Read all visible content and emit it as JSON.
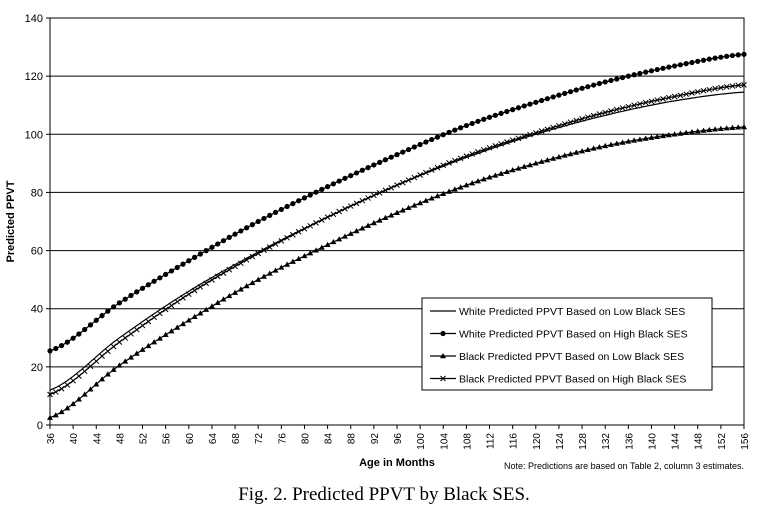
{
  "chart_data": {
    "type": "line",
    "xlabel": "Age in Months",
    "ylabel": "Predicted PPVT",
    "xlim": [
      36,
      156
    ],
    "ylim": [
      0,
      140
    ],
    "x_ticks": [
      36,
      40,
      44,
      48,
      52,
      56,
      60,
      64,
      68,
      72,
      76,
      80,
      84,
      88,
      92,
      96,
      100,
      104,
      108,
      112,
      116,
      120,
      124,
      128,
      132,
      136,
      140,
      144,
      148,
      152,
      156
    ],
    "y_ticks": [
      0,
      20,
      40,
      60,
      80,
      100,
      120,
      140
    ],
    "grid": "horizontal",
    "legend_position": "bottom-right",
    "x": [
      36,
      48,
      60,
      72,
      84,
      96,
      108,
      120,
      132,
      144,
      156
    ],
    "series": [
      {
        "name": "White Predicted PPVT Based on Low Black SES",
        "marker": "none",
        "values": [
          12,
          30,
          46,
          59.5,
          71.5,
          82.5,
          92,
          100,
          106.5,
          111.5,
          114.5
        ]
      },
      {
        "name": "White Predicted PPVT Based on High Black SES",
        "marker": "circle",
        "values": [
          25.5,
          42,
          56.5,
          70,
          82,
          93,
          103,
          111,
          118,
          123.5,
          127.5
        ]
      },
      {
        "name": "Black Predicted PPVT Based on Low Black SES",
        "marker": "triangle",
        "values": [
          2.5,
          20.5,
          36,
          50,
          62,
          73,
          82.5,
          90,
          96,
          100,
          102.5
        ]
      },
      {
        "name": "Black Predicted PPVT Based on High Black SES",
        "marker": "x",
        "values": [
          10.5,
          28.5,
          45,
          59,
          71.5,
          82.5,
          92.5,
          100.5,
          107.5,
          113,
          117
        ]
      }
    ],
    "note": "Note: Predictions are based on Table 2, column 3 estimates.",
    "caption": "Fig.  2.  Predicted PPVT by Black SES."
  }
}
